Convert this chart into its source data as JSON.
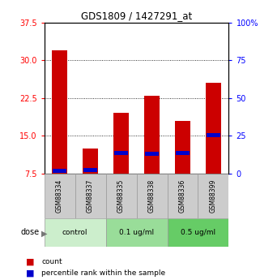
{
  "title": "GDS1809 / 1427291_at",
  "samples": [
    "GSM88334",
    "GSM88337",
    "GSM88335",
    "GSM88338",
    "GSM88336",
    "GSM88399"
  ],
  "groups": [
    {
      "label": "control",
      "indices": [
        0,
        1
      ],
      "color": "#cceecc"
    },
    {
      "label": "0.1 ug/ml",
      "indices": [
        2,
        3
      ],
      "color": "#99dd99"
    },
    {
      "label": "0.5 ug/ml",
      "indices": [
        4,
        5
      ],
      "color": "#66cc66"
    }
  ],
  "count_values": [
    32.0,
    12.5,
    19.5,
    23.0,
    18.0,
    25.5
  ],
  "percentile_values": [
    2.0,
    2.5,
    13.5,
    13.0,
    13.5,
    25.5
  ],
  "ylim_left": [
    7.5,
    37.5
  ],
  "ylim_right": [
    0,
    100
  ],
  "yticks_left": [
    7.5,
    15.0,
    22.5,
    30.0,
    37.5
  ],
  "yticks_right": [
    0,
    25,
    50,
    75,
    100
  ],
  "count_color": "#cc0000",
  "percentile_color": "#0000cc",
  "dose_label": "dose",
  "legend_count": "count",
  "legend_percentile": "percentile rank within the sample",
  "bg_color": "#ffffff",
  "plot_bg": "#ffffff",
  "sample_bg": "#cccccc"
}
